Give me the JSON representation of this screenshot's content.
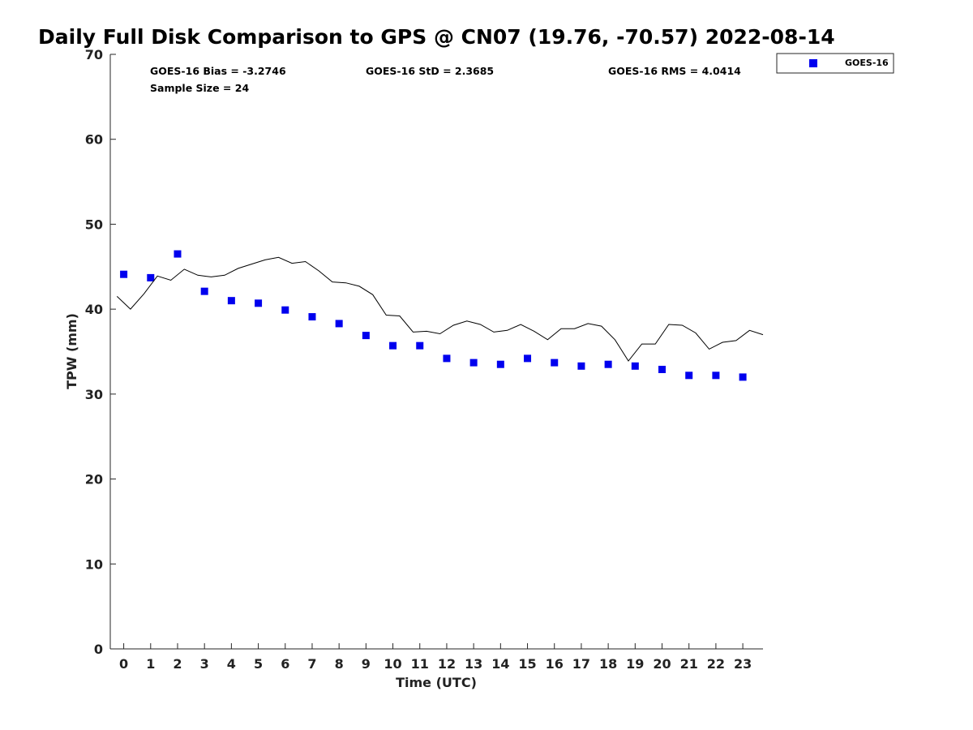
{
  "chart_data": {
    "type": "scatter",
    "title": "Daily Full Disk Comparison to GPS @ CN07 (19.76, -70.57) 2022-08-14",
    "xlabel": "Time (UTC)",
    "ylabel": "TPW (mm)",
    "xlim": [
      -0.5,
      23.75
    ],
    "ylim": [
      0,
      70
    ],
    "x_ticks": [
      0,
      1,
      2,
      3,
      4,
      5,
      6,
      7,
      8,
      9,
      10,
      11,
      12,
      13,
      14,
      15,
      16,
      17,
      18,
      19,
      20,
      21,
      22,
      23
    ],
    "y_ticks": [
      0,
      10,
      20,
      30,
      40,
      50,
      60,
      70
    ],
    "grid": false,
    "legend_position": "top-right, outside plot",
    "stats": {
      "bias": "GOES-16 Bias = -3.2746",
      "std": "GOES-16 StD = 2.3685",
      "rms": "GOES-16 RMS = 4.0414",
      "sample": "Sample Size = 24"
    },
    "series": [
      {
        "name": "GOES-16",
        "marker": "square",
        "color": "#0000ee",
        "x": [
          0,
          1,
          2,
          3,
          4,
          5,
          6,
          7,
          8,
          9,
          10,
          11,
          12,
          13,
          14,
          15,
          16,
          17,
          18,
          19,
          20,
          21,
          22,
          23
        ],
        "y": [
          44.1,
          43.7,
          46.5,
          42.1,
          41.0,
          40.7,
          39.9,
          39.1,
          38.3,
          36.9,
          35.7,
          35.7,
          34.2,
          33.7,
          33.5,
          34.2,
          33.7,
          33.3,
          33.5,
          33.3,
          32.9,
          32.2,
          32.2,
          32.0
        ]
      },
      {
        "marker": "line",
        "color": "#000000",
        "x": [
          -0.25,
          0.25,
          0.75,
          1.25,
          1.75,
          2.25,
          2.75,
          3.25,
          3.75,
          4.25,
          4.75,
          5.25,
          5.75,
          6.25,
          6.75,
          7.25,
          7.75,
          8.25,
          8.75,
          9.25,
          9.75,
          10.25,
          10.75,
          11.25,
          11.75,
          12.25,
          12.75,
          13.25,
          13.75,
          14.25,
          14.75,
          15.25,
          15.75,
          16.25,
          16.75,
          17.25,
          17.75,
          18.25,
          18.75,
          19.25,
          19.75,
          20.25,
          20.75,
          21.25,
          21.75,
          22.25,
          22.75,
          23.25,
          23.75
        ],
        "y": [
          41.5,
          40.0,
          41.8,
          43.9,
          43.4,
          44.7,
          44.0,
          43.8,
          44.0,
          44.8,
          45.3,
          45.8,
          46.1,
          45.4,
          45.6,
          44.5,
          43.2,
          43.1,
          42.7,
          41.7,
          39.3,
          39.2,
          37.3,
          37.4,
          37.1,
          38.1,
          38.6,
          38.2,
          37.3,
          37.5,
          38.2,
          37.4,
          36.4,
          37.7,
          37.7,
          38.3,
          38.0,
          36.4,
          33.9,
          35.9,
          35.9,
          38.2,
          38.1,
          37.2,
          35.3,
          36.1,
          36.3,
          37.5,
          37.0
        ]
      }
    ]
  }
}
